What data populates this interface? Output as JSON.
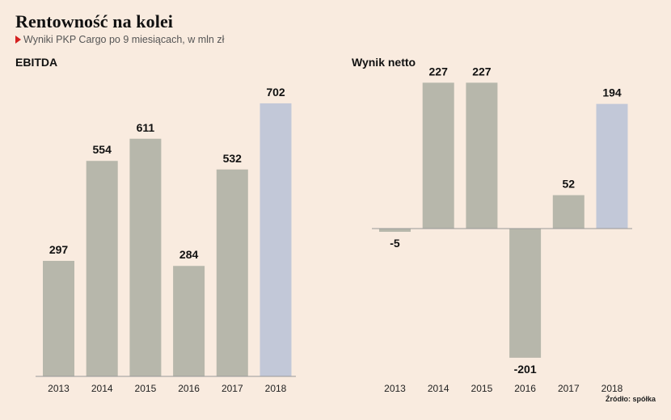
{
  "header": {
    "title": "Rentowność na kolei",
    "subtitle": "Wyniki PKP Cargo po 9 miesiącach, w mln zł"
  },
  "source": "Źródło: spółka",
  "colors": {
    "background": "#f9ebdf",
    "bar_default": "#b7b7ab",
    "bar_highlight": "#c2c8d8",
    "axis": "#999999"
  },
  "chart_data": [
    {
      "type": "bar",
      "title": "EBITDA",
      "categories": [
        "2013",
        "2014",
        "2015",
        "2016",
        "2017",
        "2018"
      ],
      "values": [
        297,
        554,
        611,
        284,
        532,
        702
      ],
      "highlight": [
        "2018"
      ],
      "ylim": [
        0,
        760
      ],
      "grid": false
    },
    {
      "type": "bar",
      "title": "Wynik netto",
      "categories": [
        "2013",
        "2014",
        "2015",
        "2016",
        "2017",
        "2018"
      ],
      "values": [
        -5,
        227,
        227,
        -201,
        52,
        194
      ],
      "highlight": [
        "2018"
      ],
      "ylim": [
        -230,
        230
      ],
      "grid": false
    }
  ]
}
